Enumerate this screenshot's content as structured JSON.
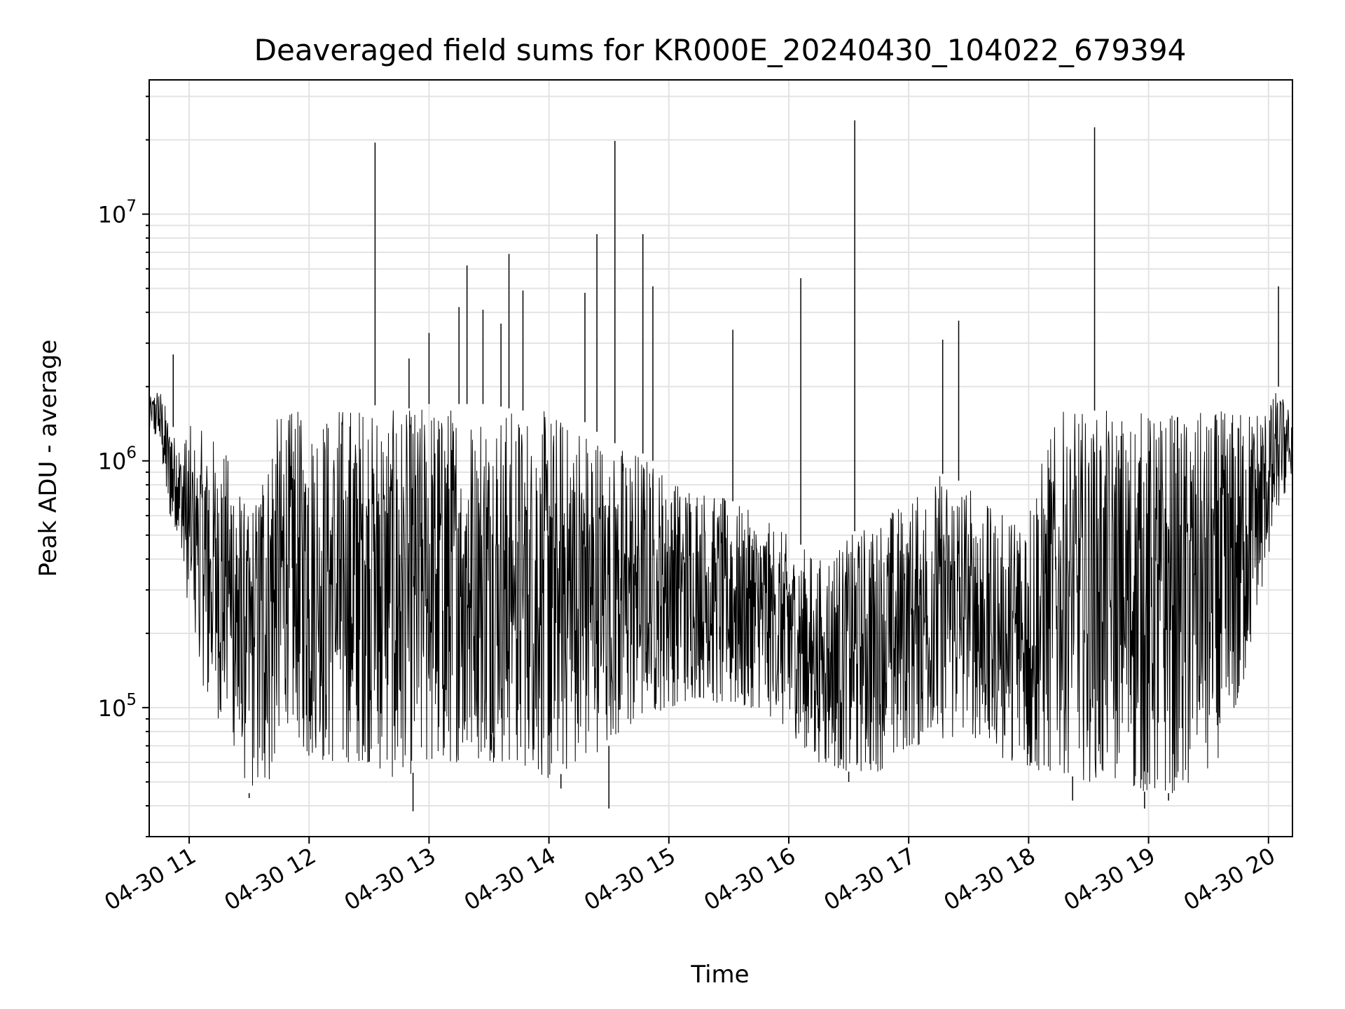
{
  "chart_data": {
    "type": "line",
    "title": "Deaveraged field sums for KR000E_20240430_104022_679394",
    "xlabel": "Time",
    "ylabel": "Peak ADU - average",
    "x_axis_kind": "datetime",
    "xlim": [
      "2024-04-30 10:40",
      "2024-04-30 20:12"
    ],
    "ylim": [
      30000,
      35000000
    ],
    "yscale": "log",
    "grid": true,
    "line_color": "#000000",
    "x_ticks": [
      {
        "time": "2024-04-30 11:00",
        "label": "04-30 11"
      },
      {
        "time": "2024-04-30 12:00",
        "label": "04-30 12"
      },
      {
        "time": "2024-04-30 13:00",
        "label": "04-30 13"
      },
      {
        "time": "2024-04-30 14:00",
        "label": "04-30 14"
      },
      {
        "time": "2024-04-30 15:00",
        "label": "04-30 15"
      },
      {
        "time": "2024-04-30 16:00",
        "label": "04-30 16"
      },
      {
        "time": "2024-04-30 17:00",
        "label": "04-30 17"
      },
      {
        "time": "2024-04-30 18:00",
        "label": "04-30 18"
      },
      {
        "time": "2024-04-30 19:00",
        "label": "04-30 19"
      },
      {
        "time": "2024-04-30 20:00",
        "label": "04-30 20"
      }
    ],
    "y_ticks": [
      {
        "value": 100000,
        "mantissa": "10",
        "exponent": "5"
      },
      {
        "value": 1000000,
        "mantissa": "10",
        "exponent": "6"
      },
      {
        "value": 10000000,
        "mantissa": "10",
        "exponent": "7"
      }
    ],
    "series": [
      {
        "x": [
          "2024-04-30 10:40",
          "2024-04-30 10:45",
          "2024-04-30 10:50",
          "2024-04-30 10:55",
          "2024-04-30 11:00",
          "2024-04-30 11:10",
          "2024-04-30 11:20",
          "2024-04-30 11:30",
          "2024-04-30 11:40",
          "2024-04-30 11:50",
          "2024-04-30 12:00",
          "2024-04-30 12:15",
          "2024-04-30 12:30",
          "2024-04-30 12:45",
          "2024-04-30 13:00",
          "2024-04-30 13:15",
          "2024-04-30 13:30",
          "2024-04-30 13:45",
          "2024-04-30 14:00",
          "2024-04-30 14:15",
          "2024-04-30 14:30",
          "2024-04-30 14:45",
          "2024-04-30 15:00",
          "2024-04-30 15:15",
          "2024-04-30 15:30",
          "2024-04-30 15:45",
          "2024-04-30 16:00",
          "2024-04-30 16:15",
          "2024-04-30 16:30",
          "2024-04-30 16:45",
          "2024-04-30 17:00",
          "2024-04-30 17:15",
          "2024-04-30 17:30",
          "2024-04-30 17:45",
          "2024-04-30 18:00",
          "2024-04-30 18:15",
          "2024-04-30 18:30",
          "2024-04-30 18:45",
          "2024-04-30 19:00",
          "2024-04-30 19:15",
          "2024-04-30 19:30",
          "2024-04-30 19:45",
          "2024-04-30 20:00",
          "2024-04-30 20:05",
          "2024-04-30 20:12"
        ],
        "upper": [
          1800000,
          2000000,
          1500000,
          1200000,
          1400000,
          1300000,
          1100000,
          600000,
          1500000,
          1600000,
          1600000,
          1700000,
          1700000,
          1600000,
          1700000,
          1700000,
          1700000,
          1600000,
          1600000,
          1500000,
          1200000,
          1100000,
          900000,
          800000,
          700000,
          600000,
          500000,
          400000,
          500000,
          600000,
          700000,
          900000,
          800000,
          600000,
          700000,
          1600000,
          1600000,
          1600000,
          1600000,
          1600000,
          1600000,
          1600000,
          1700000,
          2000000,
          1500000
        ],
        "lower": [
          1300000,
          1200000,
          600000,
          500000,
          200000,
          100000,
          80000,
          45000,
          50000,
          90000,
          60000,
          60000,
          60000,
          50000,
          60000,
          60000,
          60000,
          60000,
          50000,
          60000,
          70000,
          90000,
          100000,
          110000,
          100000,
          100000,
          80000,
          60000,
          55000,
          55000,
          70000,
          70000,
          80000,
          60000,
          55000,
          55000,
          50000,
          50000,
          45000,
          45000,
          50000,
          100000,
          400000,
          600000,
          900000
        ],
        "spikes": [
          {
            "x": "2024-04-30 10:52",
            "y": 2700000
          },
          {
            "x": "2024-04-30 12:33",
            "y": 19500000
          },
          {
            "x": "2024-04-30 12:50",
            "y": 2600000
          },
          {
            "x": "2024-04-30 13:00",
            "y": 3300000
          },
          {
            "x": "2024-04-30 13:15",
            "y": 4200000
          },
          {
            "x": "2024-04-30 13:19",
            "y": 6200000
          },
          {
            "x": "2024-04-30 13:27",
            "y": 4100000
          },
          {
            "x": "2024-04-30 13:36",
            "y": 3600000
          },
          {
            "x": "2024-04-30 13:40",
            "y": 6900000
          },
          {
            "x": "2024-04-30 13:47",
            "y": 4900000
          },
          {
            "x": "2024-04-30 14:18",
            "y": 4800000
          },
          {
            "x": "2024-04-30 14:24",
            "y": 8300000
          },
          {
            "x": "2024-04-30 14:33",
            "y": 19800000
          },
          {
            "x": "2024-04-30 14:47",
            "y": 8300000
          },
          {
            "x": "2024-04-30 14:52",
            "y": 5100000
          },
          {
            "x": "2024-04-30 15:32",
            "y": 3400000
          },
          {
            "x": "2024-04-30 16:06",
            "y": 5500000
          },
          {
            "x": "2024-04-30 16:33",
            "y": 24000000
          },
          {
            "x": "2024-04-30 17:17",
            "y": 3100000
          },
          {
            "x": "2024-04-30 17:25",
            "y": 3700000
          },
          {
            "x": "2024-04-30 18:33",
            "y": 22500000
          },
          {
            "x": "2024-04-30 20:05",
            "y": 5100000
          }
        ],
        "dips": [
          {
            "x": "2024-04-30 11:30",
            "y": 43000
          },
          {
            "x": "2024-04-30 12:52",
            "y": 38000
          },
          {
            "x": "2024-04-30 14:06",
            "y": 47000
          },
          {
            "x": "2024-04-30 14:30",
            "y": 39000
          },
          {
            "x": "2024-04-30 16:30",
            "y": 50000
          },
          {
            "x": "2024-04-30 18:22",
            "y": 42000
          },
          {
            "x": "2024-04-30 18:58",
            "y": 39000
          },
          {
            "x": "2024-04-30 19:10",
            "y": 42000
          }
        ]
      }
    ]
  }
}
